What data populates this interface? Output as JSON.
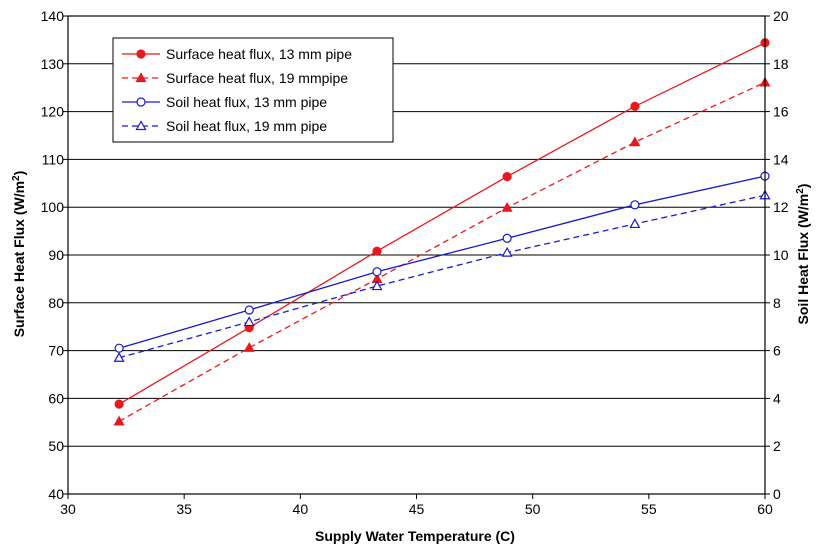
{
  "chart_data": {
    "type": "line",
    "xlabel": "Supply Water Temperature (C)",
    "ylabel_left": "Surface Heat Flux (W/m",
    "ylabel_left_sup": "2",
    "ylabel_left_end": ")",
    "ylabel_right": "Soil Heat Flux (W/m",
    "ylabel_right_sup": "2",
    "ylabel_right_end": ")",
    "xlim": [
      30,
      60
    ],
    "ylim_left": [
      40,
      140
    ],
    "ylim_right": [
      0,
      20
    ],
    "x_ticks": [
      "30",
      "35",
      "40",
      "45",
      "50",
      "55",
      "60"
    ],
    "y_left_ticks": [
      "40",
      "50",
      "60",
      "70",
      "80",
      "90",
      "100",
      "110",
      "120",
      "130",
      "140"
    ],
    "y_right_ticks": [
      "0",
      "2",
      "4",
      "6",
      "8",
      "10",
      "12",
      "14",
      "16",
      "18",
      "20"
    ],
    "grid": "horizontal",
    "legend_position": "top-left",
    "series": [
      {
        "name": "Surface heat flux, 13 mm pipe",
        "axis": "left",
        "color": "#e8191c",
        "line": "solid",
        "marker": "filled-circle",
        "x": [
          32.2,
          37.8,
          43.3,
          48.9,
          54.4,
          60.0
        ],
        "y": [
          58.8,
          74.8,
          90.8,
          106.4,
          121.1,
          134.4
        ]
      },
      {
        "name": "Surface heat flux, 19 mmpipe",
        "axis": "left",
        "color": "#e8191c",
        "line": "dashed",
        "marker": "filled-triangle",
        "x": [
          32.2,
          37.8,
          43.3,
          48.9,
          54.4,
          60.0
        ],
        "y": [
          55.2,
          70.6,
          85.0,
          99.9,
          113.6,
          126.1
        ]
      },
      {
        "name": "Soil heat flux, 13 mm pipe",
        "axis": "right",
        "color": "#1a1acd",
        "line": "solid",
        "marker": "open-circle",
        "x": [
          32.2,
          37.8,
          43.3,
          48.9,
          54.4,
          60.0
        ],
        "y": [
          6.1,
          7.7,
          9.3,
          10.7,
          12.1,
          13.3
        ]
      },
      {
        "name": "Soil heat flux, 19 mm pipe",
        "axis": "right",
        "color": "#1a1acd",
        "line": "dashed",
        "marker": "open-triangle",
        "x": [
          32.2,
          37.8,
          43.3,
          48.9,
          54.4,
          60.0
        ],
        "y": [
          5.7,
          7.2,
          8.7,
          10.1,
          11.3,
          12.5
        ]
      }
    ]
  }
}
